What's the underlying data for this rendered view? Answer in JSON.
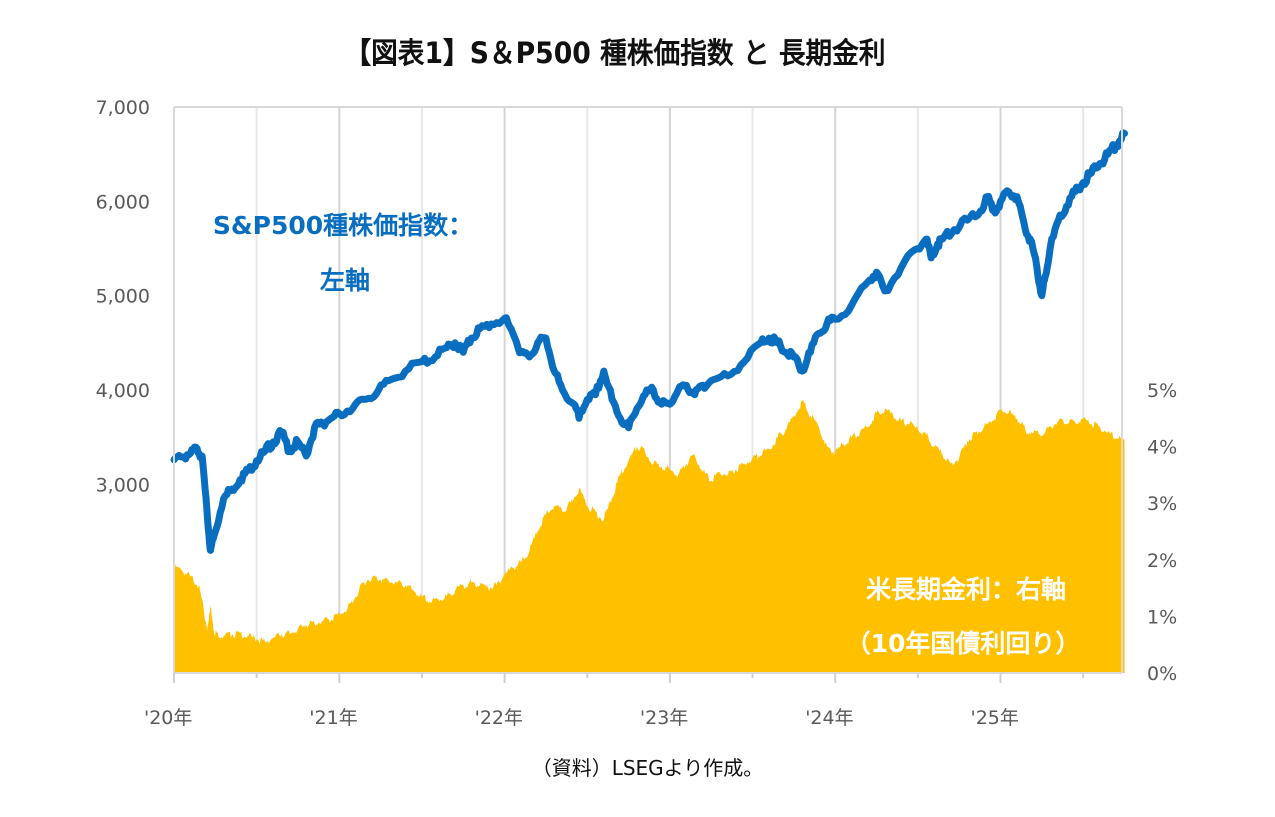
{
  "title": "【図表1】S＆P500 種株価指数 と 長期金利",
  "source_note": "（資料）LSEGより作成。",
  "colors": {
    "sp500": "#0A6EC0",
    "yield": "#FFC000",
    "grid": "#D9D9D9",
    "axis_text": "#595959"
  },
  "chart_data": {
    "type": "line",
    "title": "【図表1】S＆P500 種株価指数 と 長期金利",
    "xlabel": "",
    "x_tick_labels": [
      "'20年",
      "'21年",
      "'22年",
      "'23年",
      "'24年",
      "'25年"
    ],
    "x_range_years": [
      2020.0,
      2025.75
    ],
    "y_left": {
      "label": "",
      "ylim": [
        1000,
        7000
      ],
      "tick_labels": [
        "3,000",
        "4,000",
        "5,000",
        "6,000",
        "7,000"
      ],
      "tick_values": [
        3000,
        4000,
        5000,
        6000,
        7000
      ]
    },
    "y_right": {
      "label": "",
      "ylim": [
        0,
        10
      ],
      "tick_labels": [
        "0%",
        "1%",
        "2%",
        "3%",
        "4%",
        "5%"
      ],
      "tick_values": [
        0,
        1,
        2,
        3,
        4,
        5
      ]
    },
    "grid": "vertical",
    "annotations": [
      {
        "text_lines": [
          "S&P500種株価指数：",
          "左軸"
        ],
        "series": "sp500",
        "placement": "upper-left"
      },
      {
        "text_lines": [
          "米長期金利：右軸",
          "（10年国債利回り）"
        ],
        "series": "yield",
        "placement": "lower-right"
      }
    ],
    "series": [
      {
        "name": "S&P500種株価指数",
        "axis": "left",
        "type": "line",
        "x": [
          2020.0,
          2020.05,
          2020.1,
          2020.14,
          2020.17,
          2020.2,
          2020.22,
          2020.25,
          2020.3,
          2020.35,
          2020.4,
          2020.45,
          2020.5,
          2020.55,
          2020.6,
          2020.65,
          2020.7,
          2020.75,
          2020.8,
          2020.85,
          2020.9,
          2020.95,
          2021.0,
          2021.08,
          2021.15,
          2021.22,
          2021.3,
          2021.4,
          2021.5,
          2021.58,
          2021.65,
          2021.7,
          2021.75,
          2021.8,
          2021.85,
          2021.92,
          2022.0,
          2022.05,
          2022.1,
          2022.15,
          2022.2,
          2022.25,
          2022.3,
          2022.35,
          2022.42,
          2022.45,
          2022.5,
          2022.55,
          2022.6,
          2022.65,
          2022.7,
          2022.75,
          2022.8,
          2022.85,
          2022.9,
          2022.95,
          2023.0,
          2023.05,
          2023.1,
          2023.15,
          2023.2,
          2023.25,
          2023.35,
          2023.45,
          2023.55,
          2023.6,
          2023.65,
          2023.7,
          2023.75,
          2023.8,
          2023.85,
          2023.9,
          2023.95,
          2024.0,
          2024.1,
          2024.2,
          2024.25,
          2024.3,
          2024.4,
          2024.5,
          2024.55,
          2024.58,
          2024.62,
          2024.65,
          2024.72,
          2024.8,
          2024.88,
          2024.92,
          2024.96,
          2025.0,
          2025.05,
          2025.1,
          2025.15,
          2025.18,
          2025.22,
          2025.25,
          2025.27,
          2025.3,
          2025.35,
          2025.4,
          2025.45,
          2025.5,
          2025.55,
          2025.6,
          2025.65,
          2025.7,
          2025.75
        ],
        "values": [
          3260,
          3290,
          3330,
          3380,
          3300,
          2700,
          2300,
          2500,
          2850,
          2950,
          3050,
          3150,
          3250,
          3350,
          3450,
          3550,
          3350,
          3450,
          3300,
          3600,
          3650,
          3700,
          3750,
          3800,
          3900,
          3950,
          4100,
          4200,
          4300,
          4350,
          4450,
          4500,
          4400,
          4550,
          4650,
          4700,
          4760,
          4600,
          4400,
          4350,
          4500,
          4550,
          4200,
          4000,
          3850,
          3700,
          3900,
          3950,
          4200,
          3900,
          3700,
          3600,
          3800,
          3950,
          4000,
          3850,
          3850,
          4000,
          4050,
          3950,
          4050,
          4100,
          4150,
          4300,
          4500,
          4550,
          4500,
          4400,
          4350,
          4200,
          4400,
          4600,
          4700,
          4750,
          4900,
          5150,
          5250,
          5050,
          5300,
          5500,
          5600,
          5400,
          5550,
          5600,
          5700,
          5800,
          5900,
          6050,
          5900,
          6000,
          6100,
          6050,
          5700,
          5600,
          5300,
          5000,
          5200,
          5500,
          5800,
          5950,
          6100,
          6200,
          6300,
          6400,
          6500,
          6600,
          6720
        ]
      },
      {
        "name": "米長期金利（10年国債利回り）",
        "axis": "right",
        "type": "area",
        "unit": "%",
        "x": [
          2020.0,
          2020.05,
          2020.1,
          2020.15,
          2020.18,
          2020.2,
          2020.22,
          2020.24,
          2020.26,
          2020.3,
          2020.35,
          2020.4,
          2020.45,
          2020.5,
          2020.55,
          2020.6,
          2020.65,
          2020.7,
          2020.75,
          2020.8,
          2020.85,
          2020.9,
          2020.95,
          2021.0,
          2021.05,
          2021.1,
          2021.15,
          2021.2,
          2021.25,
          2021.3,
          2021.35,
          2021.4,
          2021.45,
          2021.5,
          2021.55,
          2021.6,
          2021.65,
          2021.7,
          2021.75,
          2021.8,
          2021.85,
          2021.9,
          2021.95,
          2022.0,
          2022.05,
          2022.1,
          2022.15,
          2022.2,
          2022.25,
          2022.3,
          2022.35,
          2022.4,
          2022.45,
          2022.5,
          2022.55,
          2022.6,
          2022.65,
          2022.7,
          2022.75,
          2022.8,
          2022.85,
          2022.9,
          2022.95,
          2023.0,
          2023.05,
          2023.1,
          2023.15,
          2023.2,
          2023.25,
          2023.3,
          2023.35,
          2023.4,
          2023.45,
          2023.5,
          2023.55,
          2023.6,
          2023.65,
          2023.7,
          2023.75,
          2023.8,
          2023.85,
          2023.9,
          2023.95,
          2024.0,
          2024.05,
          2024.1,
          2024.15,
          2024.2,
          2024.25,
          2024.3,
          2024.35,
          2024.4,
          2024.45,
          2024.5,
          2024.55,
          2024.6,
          2024.65,
          2024.7,
          2024.75,
          2024.8,
          2024.85,
          2024.9,
          2024.95,
          2025.0,
          2025.05,
          2025.1,
          2025.15,
          2025.2,
          2025.25,
          2025.3,
          2025.35,
          2025.4,
          2025.45,
          2025.5,
          2025.55,
          2025.6,
          2025.65,
          2025.7,
          2025.75
        ],
        "values": [
          1.88,
          1.8,
          1.7,
          1.55,
          1.1,
          0.75,
          1.2,
          0.75,
          0.7,
          0.65,
          0.68,
          0.7,
          0.65,
          0.6,
          0.55,
          0.62,
          0.68,
          0.7,
          0.78,
          0.85,
          0.88,
          0.92,
          0.95,
          1.05,
          1.15,
          1.35,
          1.6,
          1.7,
          1.65,
          1.62,
          1.6,
          1.55,
          1.45,
          1.35,
          1.25,
          1.3,
          1.35,
          1.45,
          1.55,
          1.6,
          1.55,
          1.5,
          1.55,
          1.75,
          1.85,
          1.95,
          2.15,
          2.5,
          2.8,
          2.95,
          2.85,
          3.0,
          3.25,
          2.95,
          2.85,
          2.7,
          3.1,
          3.5,
          3.75,
          4.0,
          3.9,
          3.7,
          3.65,
          3.6,
          3.5,
          3.7,
          3.85,
          3.55,
          3.4,
          3.55,
          3.5,
          3.6,
          3.7,
          3.8,
          3.85,
          3.95,
          4.15,
          4.3,
          4.55,
          4.8,
          4.55,
          4.35,
          4.0,
          3.9,
          4.05,
          4.15,
          4.25,
          4.35,
          4.6,
          4.65,
          4.55,
          4.45,
          4.4,
          4.3,
          4.2,
          4.0,
          3.85,
          3.7,
          3.8,
          4.1,
          4.25,
          4.35,
          4.45,
          4.65,
          4.6,
          4.5,
          4.3,
          4.25,
          4.2,
          4.35,
          4.45,
          4.4,
          4.45,
          4.5,
          4.4,
          4.35,
          4.25,
          4.15,
          4.1
        ]
      }
    ]
  }
}
